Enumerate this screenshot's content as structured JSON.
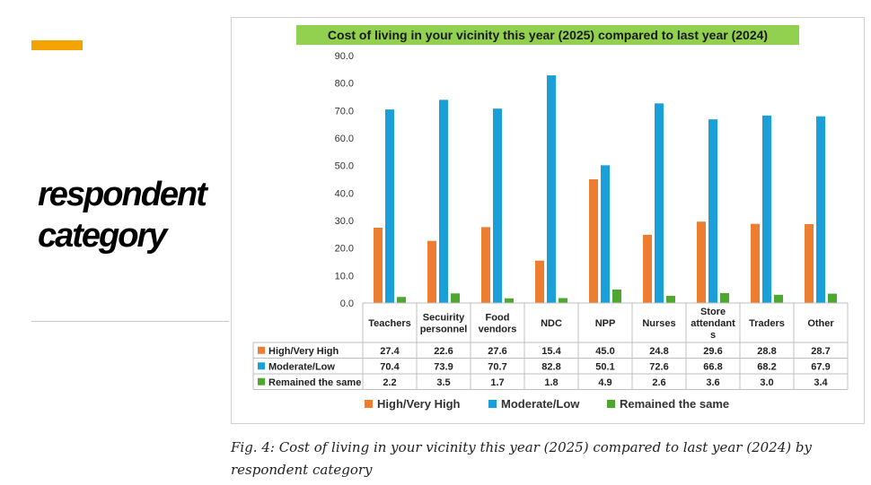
{
  "slide": {
    "title": "respondent category",
    "caption": "Fig. 4: Cost of living in your vicinity this year (2025) compared to last year (2024) by respondent category",
    "accent_color": "#F5A300"
  },
  "chart_data": {
    "type": "bar",
    "title": "Cost of living in your vicinity this year (2025) compared to last year (2024)",
    "title_bg": "#92D050",
    "xlabel": "",
    "ylabel": "",
    "ylim": [
      0,
      90
    ],
    "yticks": [
      "0.0",
      "10.0",
      "20.0",
      "30.0",
      "40.0",
      "50.0",
      "60.0",
      "70.0",
      "80.0",
      "90.0"
    ],
    "grid": false,
    "legend_position": "bottom",
    "categories": [
      [
        "Teachers"
      ],
      [
        "Secuirity",
        "personnel"
      ],
      [
        "Food",
        "vendors"
      ],
      [
        "NDC"
      ],
      [
        "NPP"
      ],
      [
        "Nurses"
      ],
      [
        "Store",
        "attendant",
        "s"
      ],
      [
        "Traders"
      ],
      [
        "Other"
      ]
    ],
    "series": [
      {
        "name": "High/Very High",
        "color": "#ED7D31",
        "values": [
          27.4,
          22.6,
          27.6,
          15.4,
          45.0,
          24.8,
          29.6,
          28.8,
          28.7
        ],
        "labels": [
          "27.4",
          "22.6",
          "27.6",
          "15.4",
          "45.0",
          "24.8",
          "29.6",
          "28.8",
          "28.7"
        ]
      },
      {
        "name": "Moderate/Low",
        "color": "#1A9FD9",
        "values": [
          70.4,
          73.9,
          70.7,
          82.8,
          50.1,
          72.6,
          66.8,
          68.2,
          67.9
        ],
        "labels": [
          "70.4",
          "73.9",
          "70.7",
          "82.8",
          "50.1",
          "72.6",
          "66.8",
          "68.2",
          "67.9"
        ]
      },
      {
        "name": "Remained the same",
        "color": "#4EA72E",
        "values": [
          2.2,
          3.5,
          1.7,
          1.8,
          4.9,
          2.6,
          3.6,
          3.0,
          3.4
        ],
        "labels": [
          "2.2",
          "3.5",
          "1.7",
          "1.8",
          "4.9",
          "2.6",
          "3.6",
          "3.0",
          "3.4"
        ]
      }
    ]
  }
}
